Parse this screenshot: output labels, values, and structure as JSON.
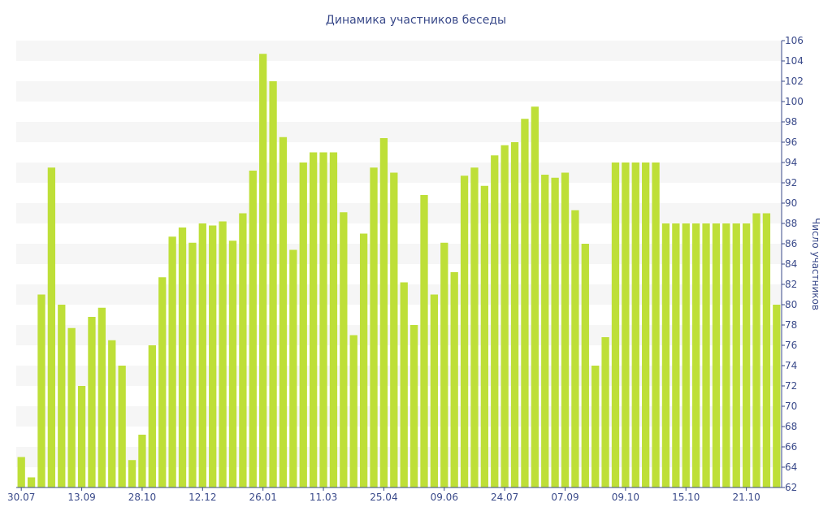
{
  "chart_data": {
    "type": "bar",
    "title": "Динамика участников беседы",
    "xlabel": "",
    "ylabel": "Число участников",
    "ylim": [
      62,
      106
    ],
    "y_ticks": [
      62,
      64,
      66,
      68,
      70,
      72,
      74,
      76,
      78,
      80,
      82,
      84,
      86,
      88,
      90,
      92,
      94,
      96,
      98,
      100,
      102,
      104,
      106
    ],
    "x_tick_labels": [
      {
        "index": 0,
        "label": "30.07"
      },
      {
        "index": 6,
        "label": "13.09"
      },
      {
        "index": 12,
        "label": "28.10"
      },
      {
        "index": 18,
        "label": "12.12"
      },
      {
        "index": 24,
        "label": "26.01"
      },
      {
        "index": 30,
        "label": "11.03"
      },
      {
        "index": 36,
        "label": "25.04"
      },
      {
        "index": 42,
        "label": "09.06"
      },
      {
        "index": 48,
        "label": "24.07"
      },
      {
        "index": 54,
        "label": "07.09"
      },
      {
        "index": 60,
        "label": "09.10"
      },
      {
        "index": 66,
        "label": "15.10"
      },
      {
        "index": 72,
        "label": "21.10"
      }
    ],
    "values": [
      65,
      63,
      81,
      93.5,
      80,
      77.7,
      72,
      78.8,
      79.7,
      76.5,
      74,
      64.7,
      67.2,
      76,
      82.7,
      86.7,
      87.6,
      86.1,
      88,
      87.8,
      88.2,
      86.3,
      89,
      93.2,
      104.7,
      102,
      96.5,
      85.4,
      94,
      95,
      95,
      95,
      89.1,
      77,
      87,
      93.5,
      96.4,
      93,
      82.2,
      78,
      90.8,
      81,
      86.1,
      83.2,
      92.7,
      93.5,
      91.7,
      94.7,
      95.7,
      96,
      98.3,
      99.5,
      92.8,
      92.5,
      93,
      89.3,
      86,
      74,
      76.8,
      94,
      94,
      94,
      94,
      94,
      88,
      88,
      88,
      88,
      88,
      88,
      88,
      88,
      88,
      89,
      89,
      80
    ],
    "grid": true,
    "grid_style": "alternating horizontal bands",
    "bar_color": "#bedf38",
    "band_color": "#f6f6f6",
    "text_color": "#3a4a8a",
    "y_axis_side": "right"
  }
}
